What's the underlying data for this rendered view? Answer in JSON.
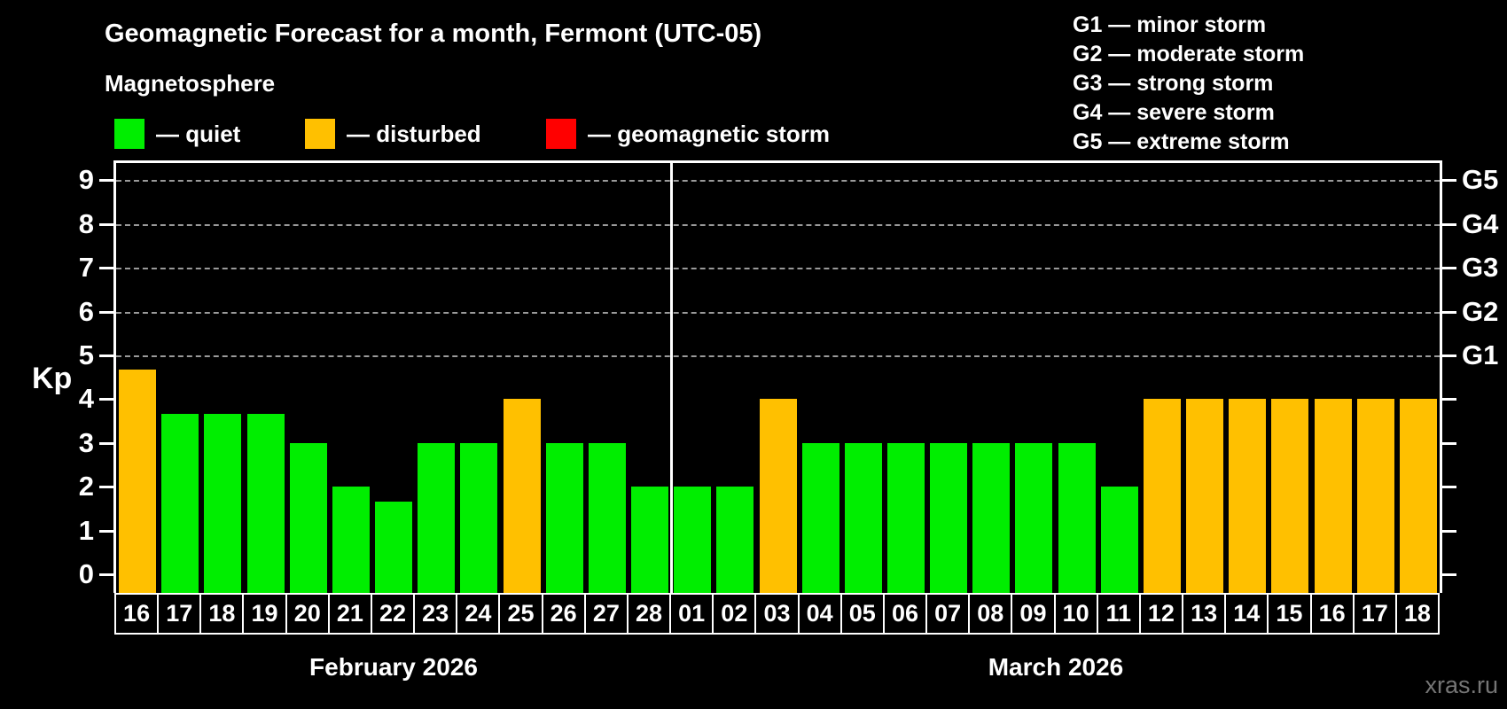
{
  "title": "Geomagnetic Forecast for a month, Fermont (UTC-05)",
  "subtitle": "Magnetosphere",
  "legend": {
    "items": [
      {
        "key": "quiet",
        "label": "— quiet",
        "color": "#00ee00"
      },
      {
        "key": "disturbed",
        "label": "— disturbed",
        "color": "#ffc000"
      },
      {
        "key": "storm",
        "label": "— geomagnetic storm",
        "color": "#ff0000"
      }
    ]
  },
  "storm_scale": [
    "G1 — minor storm",
    "G2 — moderate storm",
    "G3 — strong storm",
    "G4 — severe storm",
    "G5 — extreme storm"
  ],
  "watermark": "xras.ru",
  "chart_data": {
    "type": "bar",
    "title": "Geomagnetic Forecast for a month, Fermont (UTC-05)",
    "ylabel": "Kp",
    "ylim": [
      0,
      9
    ],
    "yticks": [
      0,
      1,
      2,
      3,
      4,
      5,
      6,
      7,
      8,
      9
    ],
    "grid_dashed_at_kp": [
      5,
      6,
      7,
      8,
      9
    ],
    "right_axis": [
      {
        "kp": 5,
        "label": "G1"
      },
      {
        "kp": 6,
        "label": "G2"
      },
      {
        "kp": 7,
        "label": "G3"
      },
      {
        "kp": 8,
        "label": "G4"
      },
      {
        "kp": 9,
        "label": "G5"
      }
    ],
    "bar_colors": {
      "quiet": "#00ee00",
      "disturbed": "#ffc000",
      "storm": "#ff0000"
    },
    "months": [
      {
        "label": "February 2026",
        "bars": [
          {
            "day": "16",
            "kp": 4.67,
            "status": "disturbed"
          },
          {
            "day": "17",
            "kp": 3.67,
            "status": "quiet"
          },
          {
            "day": "18",
            "kp": 3.67,
            "status": "quiet"
          },
          {
            "day": "19",
            "kp": 3.67,
            "status": "quiet"
          },
          {
            "day": "20",
            "kp": 3,
            "status": "quiet"
          },
          {
            "day": "21",
            "kp": 2,
            "status": "quiet"
          },
          {
            "day": "22",
            "kp": 1.67,
            "status": "quiet"
          },
          {
            "day": "23",
            "kp": 3,
            "status": "quiet"
          },
          {
            "day": "24",
            "kp": 3,
            "status": "quiet"
          },
          {
            "day": "25",
            "kp": 4,
            "status": "disturbed"
          },
          {
            "day": "26",
            "kp": 3,
            "status": "quiet"
          },
          {
            "day": "27",
            "kp": 3,
            "status": "quiet"
          },
          {
            "day": "28",
            "kp": 2,
            "status": "quiet"
          }
        ]
      },
      {
        "label": "March 2026",
        "bars": [
          {
            "day": "01",
            "kp": 2,
            "status": "quiet"
          },
          {
            "day": "02",
            "kp": 2,
            "status": "quiet"
          },
          {
            "day": "03",
            "kp": 4,
            "status": "disturbed"
          },
          {
            "day": "04",
            "kp": 3,
            "status": "quiet"
          },
          {
            "day": "05",
            "kp": 3,
            "status": "quiet"
          },
          {
            "day": "06",
            "kp": 3,
            "status": "quiet"
          },
          {
            "day": "07",
            "kp": 3,
            "status": "quiet"
          },
          {
            "day": "08",
            "kp": 3,
            "status": "quiet"
          },
          {
            "day": "09",
            "kp": 3,
            "status": "quiet"
          },
          {
            "day": "10",
            "kp": 3,
            "status": "quiet"
          },
          {
            "day": "11",
            "kp": 2,
            "status": "quiet"
          },
          {
            "day": "12",
            "kp": 4,
            "status": "disturbed"
          },
          {
            "day": "13",
            "kp": 4,
            "status": "disturbed"
          },
          {
            "day": "14",
            "kp": 4,
            "status": "disturbed"
          },
          {
            "day": "15",
            "kp": 4,
            "status": "disturbed"
          },
          {
            "day": "16",
            "kp": 4,
            "status": "disturbed"
          },
          {
            "day": "17",
            "kp": 4,
            "status": "disturbed"
          },
          {
            "day": "18",
            "kp": 4,
            "status": "disturbed"
          }
        ]
      }
    ]
  }
}
